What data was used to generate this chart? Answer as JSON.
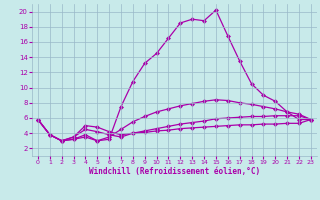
{
  "xlabel": "Windchill (Refroidissement éolien,°C)",
  "bg_color": "#c8eaea",
  "line_color": "#aa00aa",
  "marker": "D",
  "markersize": 2.0,
  "xlim": [
    -0.5,
    23.5
  ],
  "ylim": [
    1.0,
    21.0
  ],
  "xticks": [
    0,
    1,
    2,
    3,
    4,
    5,
    6,
    7,
    8,
    9,
    10,
    11,
    12,
    13,
    14,
    15,
    16,
    17,
    18,
    19,
    20,
    21,
    22,
    23
  ],
  "yticks": [
    2,
    4,
    6,
    8,
    10,
    12,
    14,
    16,
    18,
    20
  ],
  "grid_color": "#9ab8c8",
  "linewidth": 0.9,
  "lines": [
    {
      "x": [
        0,
        1,
        2,
        3,
        4,
        5,
        6,
        7,
        8,
        9,
        10,
        11,
        12,
        13,
        14,
        15,
        16,
        17,
        18,
        19,
        20,
        21,
        22,
        23
      ],
      "y": [
        5.8,
        3.8,
        3.0,
        3.2,
        3.5,
        3.0,
        3.2,
        7.5,
        10.8,
        13.2,
        14.5,
        16.5,
        18.5,
        19.0,
        18.8,
        20.2,
        16.8,
        13.5,
        10.5,
        9.0,
        8.2,
        6.8,
        5.8,
        5.8
      ]
    },
    {
      "x": [
        0,
        1,
        2,
        3,
        4,
        5,
        6,
        7,
        8,
        9,
        10,
        11,
        12,
        13,
        14,
        15,
        16,
        17,
        18,
        19,
        20,
        21,
        22,
        23
      ],
      "y": [
        5.8,
        3.8,
        3.0,
        3.2,
        3.8,
        3.0,
        3.5,
        4.5,
        5.5,
        6.2,
        6.8,
        7.2,
        7.6,
        7.9,
        8.2,
        8.4,
        8.3,
        8.0,
        7.8,
        7.5,
        7.2,
        6.8,
        6.5,
        5.8
      ]
    },
    {
      "x": [
        0,
        1,
        2,
        3,
        4,
        5,
        6,
        7,
        8,
        9,
        10,
        11,
        12,
        13,
        14,
        15,
        16,
        17,
        18,
        19,
        20,
        21,
        22,
        23
      ],
      "y": [
        5.8,
        3.8,
        3.0,
        3.5,
        4.5,
        4.2,
        3.8,
        3.5,
        4.0,
        4.3,
        4.6,
        4.9,
        5.2,
        5.4,
        5.6,
        5.9,
        6.0,
        6.1,
        6.2,
        6.2,
        6.3,
        6.3,
        6.3,
        5.8
      ]
    },
    {
      "x": [
        0,
        1,
        2,
        3,
        4,
        5,
        6,
        7,
        8,
        9,
        10,
        11,
        12,
        13,
        14,
        15,
        16,
        17,
        18,
        19,
        20,
        21,
        22,
        23
      ],
      "y": [
        5.8,
        3.8,
        3.0,
        3.5,
        5.0,
        4.8,
        4.2,
        3.8,
        4.0,
        4.1,
        4.3,
        4.4,
        4.6,
        4.7,
        4.8,
        4.9,
        5.0,
        5.1,
        5.1,
        5.2,
        5.2,
        5.3,
        5.3,
        5.8
      ]
    }
  ]
}
